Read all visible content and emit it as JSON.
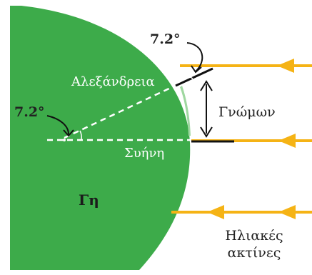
{
  "labels": {
    "top_angle": "7.2°",
    "center_angle": "7.2°",
    "alexandria": "Αλεξάνδρεια",
    "gnomon": "Γνώμων",
    "syene": "Συήνη",
    "earth": "Γη",
    "sun_rays_line1": "Ηλιακές",
    "sun_rays_line2": "ακτίνες"
  },
  "colors": {
    "earth": "#3dab4a",
    "earth_edge": "#9fd7a0",
    "ray": "#f5b315",
    "arrow": "#111111",
    "dashed": "#ffffff"
  },
  "icons": {
    "ray_arrowhead": "triangle-left-icon",
    "curved_arrow": "curved-arrow-icon",
    "double_arrow": "double-arrow-icon"
  }
}
